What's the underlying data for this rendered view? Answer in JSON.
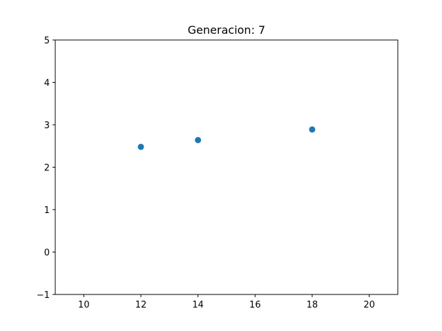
{
  "chart_data": {
    "type": "scatter",
    "title": "Generacion: 7",
    "xlabel": "",
    "ylabel": "",
    "xlim": [
      9,
      21
    ],
    "ylim": [
      -1,
      5
    ],
    "xticks": [
      10,
      12,
      14,
      16,
      18,
      20
    ],
    "yticks": [
      -1,
      0,
      1,
      2,
      3,
      4,
      5
    ],
    "xtick_labels": [
      "10",
      "12",
      "14",
      "16",
      "18",
      "20"
    ],
    "ytick_labels": [
      "−1",
      "0",
      "1",
      "2",
      "3",
      "4",
      "5"
    ],
    "grid": false,
    "series": [
      {
        "color": "#1f77b4",
        "points": [
          {
            "x": 12,
            "y": 2.48
          },
          {
            "x": 14,
            "y": 2.64
          },
          {
            "x": 18,
            "y": 2.89
          }
        ]
      }
    ]
  }
}
